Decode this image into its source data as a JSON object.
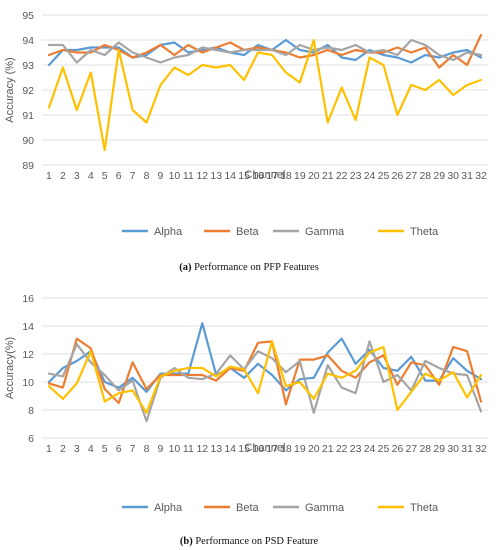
{
  "captions": [
    {
      "prefix": "(a)",
      "text": "Performance on PFP Features"
    },
    {
      "prefix": "(b)",
      "text": "Performance on PSD Feature"
    }
  ],
  "colors": {
    "Alpha": "#5B9BD5",
    "Beta": "#ED7D31",
    "Gamma": "#A5A5A5",
    "Theta": "#FFC000",
    "grid": "#D9D9D9"
  },
  "chart_data": [
    {
      "type": "line",
      "xlabel": "Channel",
      "ylabel": "Accuracy (%)",
      "ylim": [
        89,
        95
      ],
      "yticks": [
        89,
        90,
        91,
        92,
        93,
        94,
        95
      ],
      "grid": true,
      "legend": "bottom",
      "x": [
        1,
        2,
        3,
        4,
        5,
        6,
        7,
        8,
        9,
        10,
        11,
        12,
        13,
        14,
        15,
        16,
        17,
        18,
        19,
        20,
        21,
        22,
        23,
        24,
        25,
        26,
        27,
        28,
        29,
        30,
        31,
        32
      ],
      "series": [
        {
          "name": "Alpha",
          "values": [
            93.0,
            93.6,
            93.6,
            93.7,
            93.7,
            93.7,
            93.3,
            93.4,
            93.8,
            93.9,
            93.5,
            93.6,
            93.7,
            93.5,
            93.4,
            93.8,
            93.6,
            94.0,
            93.6,
            93.5,
            93.8,
            93.3,
            93.2,
            93.6,
            93.4,
            93.3,
            93.1,
            93.4,
            93.3,
            93.5,
            93.6,
            93.3
          ]
        },
        {
          "name": "Beta",
          "values": [
            93.4,
            93.6,
            93.5,
            93.5,
            93.8,
            93.6,
            93.3,
            93.5,
            93.8,
            93.4,
            93.8,
            93.5,
            93.7,
            93.9,
            93.6,
            93.7,
            93.6,
            93.5,
            93.3,
            93.4,
            93.6,
            93.4,
            93.6,
            93.5,
            93.5,
            93.7,
            93.5,
            93.7,
            92.9,
            93.4,
            93.0,
            94.2
          ]
        },
        {
          "name": "Gamma",
          "values": [
            93.8,
            93.8,
            93.1,
            93.6,
            93.4,
            93.9,
            93.5,
            93.3,
            93.1,
            93.3,
            93.4,
            93.7,
            93.6,
            93.5,
            93.6,
            93.6,
            93.6,
            93.4,
            93.8,
            93.6,
            93.7,
            93.6,
            93.8,
            93.5,
            93.6,
            93.4,
            94.0,
            93.8,
            93.4,
            93.2,
            93.5,
            93.4
          ]
        },
        {
          "name": "Theta",
          "values": [
            91.3,
            92.9,
            91.2,
            92.7,
            89.6,
            93.6,
            91.2,
            90.7,
            92.2,
            92.9,
            92.6,
            93.0,
            92.9,
            93.0,
            92.4,
            93.5,
            93.4,
            92.7,
            92.3,
            94.0,
            90.7,
            92.1,
            90.8,
            93.3,
            93.0,
            91.0,
            92.2,
            92.0,
            92.4,
            91.8,
            92.2,
            92.4
          ]
        }
      ]
    },
    {
      "type": "line",
      "xlabel": "Channel",
      "ylabel": "Accuracy(%)",
      "ylim": [
        6,
        16
      ],
      "yticks": [
        6,
        8,
        10,
        12,
        14,
        16
      ],
      "grid": true,
      "legend": "bottom",
      "x": [
        1,
        2,
        3,
        4,
        5,
        6,
        7,
        8,
        9,
        10,
        11,
        12,
        13,
        14,
        15,
        16,
        17,
        18,
        19,
        20,
        21,
        22,
        23,
        24,
        25,
        26,
        27,
        28,
        29,
        30,
        31,
        32
      ],
      "series": [
        {
          "name": "Alpha",
          "values": [
            10.0,
            11.0,
            11.5,
            12.2,
            10.0,
            9.6,
            10.3,
            9.3,
            10.6,
            10.6,
            10.6,
            14.2,
            10.5,
            11.0,
            10.3,
            11.3,
            10.5,
            9.4,
            10.2,
            10.3,
            12.1,
            13.1,
            11.3,
            12.3,
            11.0,
            10.8,
            11.8,
            10.1,
            10.1,
            11.7,
            10.8,
            10.2
          ]
        },
        {
          "name": "Beta",
          "values": [
            9.9,
            9.6,
            13.1,
            12.4,
            9.5,
            8.5,
            11.4,
            9.5,
            10.5,
            10.5,
            10.5,
            10.5,
            10.1,
            11.0,
            10.8,
            12.8,
            12.9,
            8.4,
            11.6,
            11.6,
            11.9,
            10.8,
            10.3,
            11.4,
            11.9,
            9.8,
            11.4,
            11.2,
            9.8,
            12.5,
            12.2,
            8.6
          ]
        },
        {
          "name": "Gamma",
          "values": [
            10.6,
            10.4,
            12.7,
            11.4,
            10.5,
            9.4,
            10.1,
            7.2,
            10.3,
            11.0,
            10.3,
            10.2,
            10.6,
            11.9,
            10.9,
            12.2,
            11.7,
            10.7,
            11.5,
            7.8,
            11.2,
            9.6,
            9.2,
            12.9,
            10.0,
            10.5,
            9.4,
            11.5,
            11.0,
            10.6,
            10.5,
            7.9
          ]
        },
        {
          "name": "Theta",
          "values": [
            9.7,
            8.8,
            9.9,
            12.2,
            8.6,
            9.2,
            9.4,
            7.8,
            10.4,
            10.8,
            11.0,
            11.0,
            10.4,
            11.1,
            10.9,
            9.2,
            12.9,
            9.7,
            10.0,
            8.8,
            10.6,
            10.3,
            10.8,
            12.1,
            12.5,
            8.0,
            9.3,
            10.6,
            10.1,
            10.7,
            8.9,
            10.5
          ]
        }
      ]
    }
  ]
}
